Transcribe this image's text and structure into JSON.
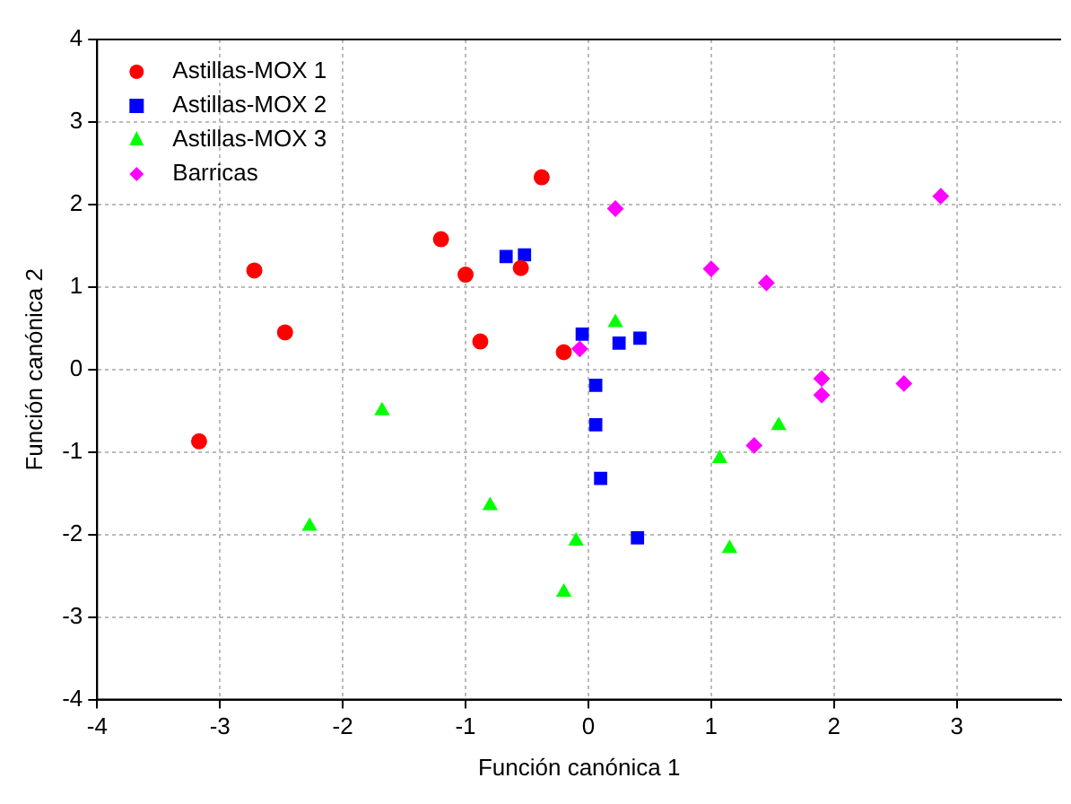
{
  "chart_data": {
    "type": "scatter",
    "xlabel": "Función canónica 1",
    "ylabel": "Función canónica 2",
    "xlim": [
      -4,
      3.85
    ],
    "ylim": [
      -4,
      4
    ],
    "xticks": [
      -4,
      -3,
      -2,
      -1,
      0,
      1,
      2,
      3
    ],
    "yticks": [
      -4,
      -3,
      -2,
      -1,
      0,
      1,
      2,
      3,
      4
    ],
    "grid": true,
    "legend": "top left",
    "series": [
      {
        "name": "Astillas-MOX 1",
        "color": "#ff0000",
        "marker": "circle",
        "x": [
          -3.17,
          -2.72,
          -2.47,
          -1.2,
          -1.0,
          -0.88,
          -0.55,
          -0.38,
          -0.2
        ],
        "values": [
          -0.87,
          1.2,
          0.45,
          1.58,
          1.15,
          0.34,
          1.23,
          2.33,
          0.21
        ]
      },
      {
        "name": "Astillas-MOX 2",
        "color": "#0000ff",
        "marker": "square",
        "x": [
          -0.67,
          -0.52,
          -0.05,
          0.25,
          0.42,
          0.06,
          0.06,
          0.1,
          0.4
        ],
        "values": [
          1.37,
          1.39,
          0.43,
          0.32,
          0.38,
          -0.19,
          -0.67,
          -1.32,
          -2.04
        ]
      },
      {
        "name": "Astillas-MOX 3",
        "color": "#00ff00",
        "marker": "triangle",
        "x": [
          -2.27,
          -1.68,
          -0.8,
          0.22,
          -0.1,
          -0.2,
          1.07,
          1.55,
          1.15
        ],
        "values": [
          -1.9,
          -0.5,
          -1.65,
          0.57,
          -2.08,
          -2.7,
          -1.08,
          -0.68,
          -2.17
        ]
      },
      {
        "name": "Barricas",
        "color": "#ff00ff",
        "marker": "diamond",
        "x": [
          0.22,
          -0.07,
          1.0,
          1.45,
          1.9,
          1.9,
          2.57,
          1.35,
          2.87
        ],
        "values": [
          1.95,
          0.25,
          1.22,
          1.05,
          -0.11,
          -0.31,
          -0.17,
          -0.92,
          2.1
        ]
      }
    ]
  }
}
